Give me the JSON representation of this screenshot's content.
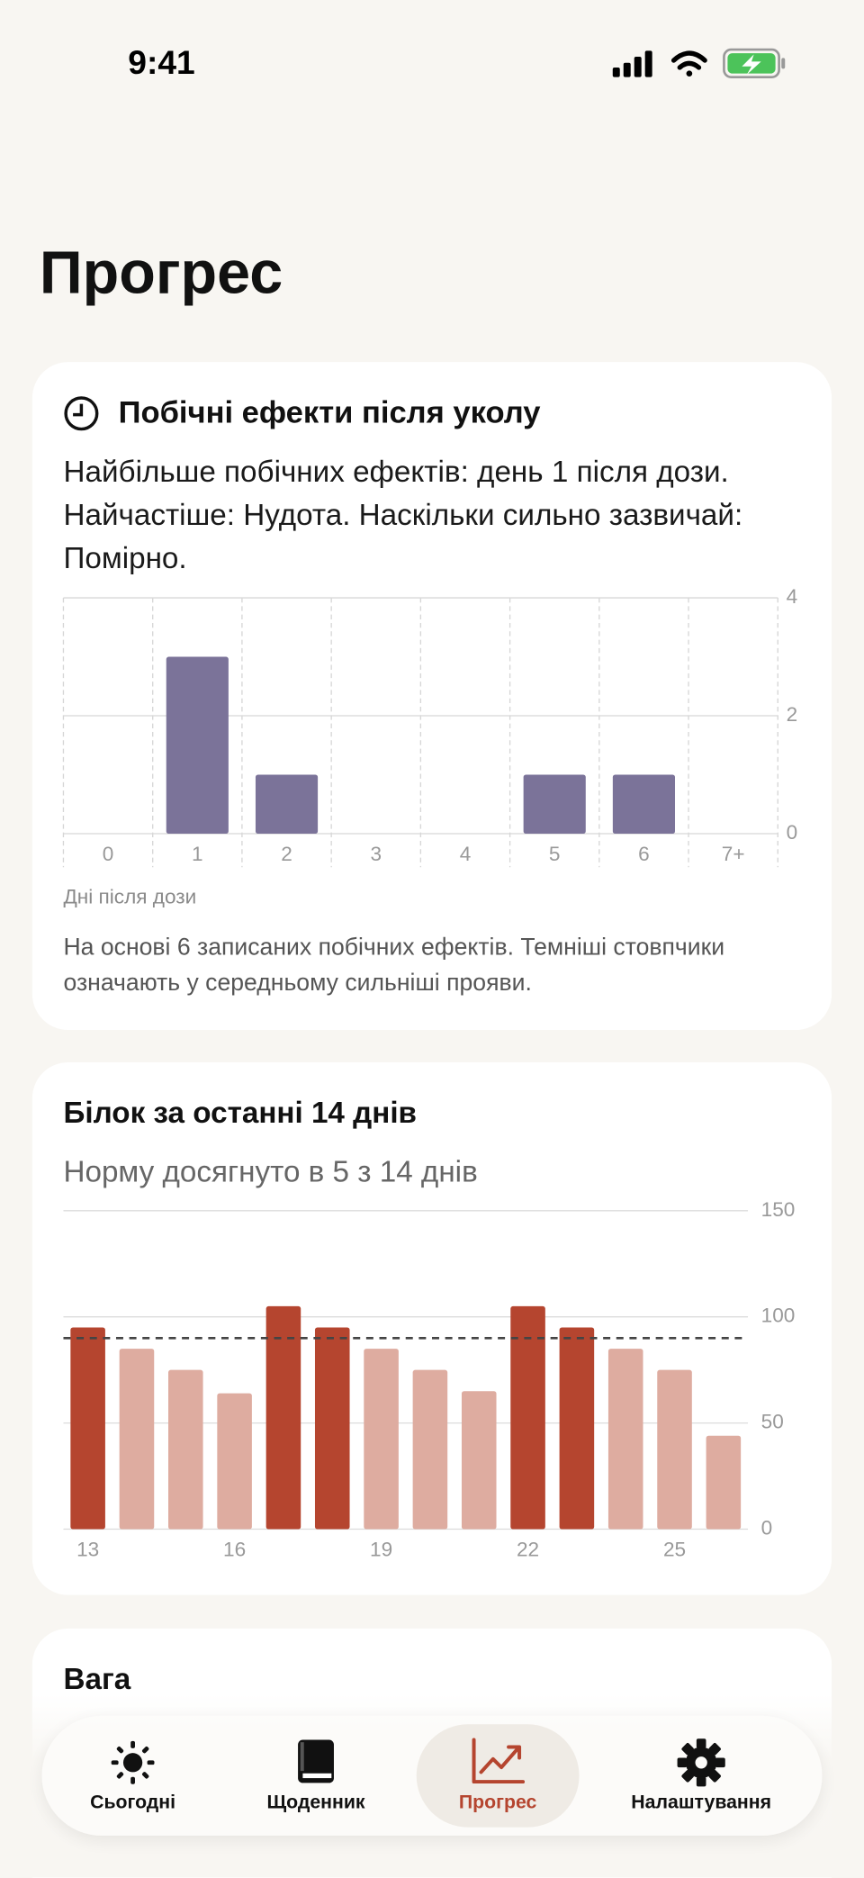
{
  "status_bar": {
    "time": "9:41"
  },
  "header": {
    "title": "Прогрес"
  },
  "chart_data": [
    {
      "type": "bar",
      "title": "Побічні ефекти після уколу",
      "subtitle": "Найбільше побічних ефектів: день 1 після дози. Найчастіше: Нудота. Наскільки сильно зазвичай: Помірно.",
      "categories": [
        "0",
        "1",
        "2",
        "3",
        "4",
        "5",
        "6",
        "7+"
      ],
      "values": [
        0,
        3,
        1,
        0,
        0,
        1,
        1,
        0
      ],
      "color": "#7b7399",
      "ylim": [
        0,
        4
      ],
      "yticks": [
        0,
        2,
        4
      ],
      "grid": true,
      "x_label": "Дні після дози",
      "note": "На основі 6 записаних побічних ефектів. Темніші стовпчики означають у середньому сильніші прояви."
    },
    {
      "type": "bar",
      "title": "Білок за останні 14 днів",
      "subtitle": "Норму досягнуто в 5 з 14 днів",
      "categories": [
        "13",
        null,
        null,
        "16",
        null,
        null,
        "19",
        null,
        null,
        "22",
        null,
        null,
        "25",
        null
      ],
      "values": [
        95,
        85,
        75,
        64,
        105,
        95,
        85,
        75,
        65,
        105,
        95,
        85,
        75,
        44
      ],
      "goal": 90,
      "color": "#b5452f",
      "color_below_goal": "#deaca0",
      "ylim": [
        0,
        150
      ],
      "yticks": [
        0,
        50,
        100,
        150
      ],
      "grid": true
    }
  ],
  "weight_card": {
    "title": "Вага"
  },
  "tab_bar": {
    "items": [
      "Сьогодні",
      "Щоденник",
      "Прогрес",
      "Налаштування"
    ],
    "active": 2
  }
}
